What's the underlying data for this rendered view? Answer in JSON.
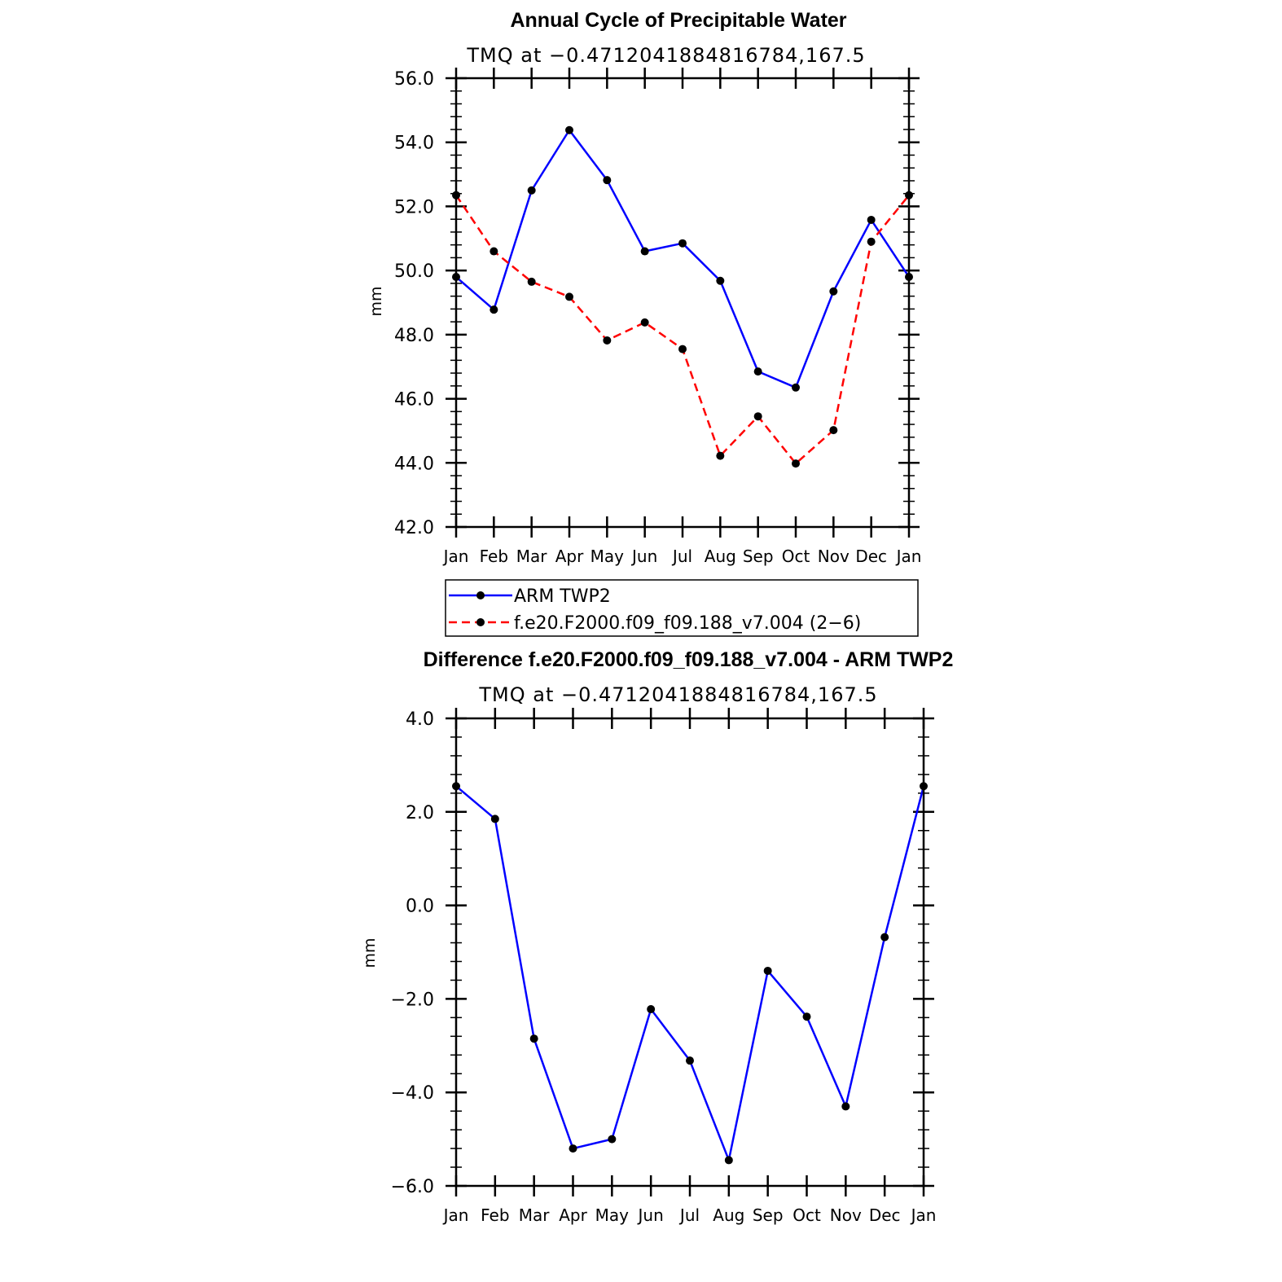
{
  "chart_data": [
    {
      "type": "line",
      "title": "Annual Cycle of Precipitable Water",
      "subtitle": "TMQ at −0.4712041884816784,167.5",
      "xlabel": "",
      "ylabel": "mm",
      "categories": [
        "Jan",
        "Feb",
        "Mar",
        "Apr",
        "May",
        "Jun",
        "Jul",
        "Aug",
        "Sep",
        "Oct",
        "Nov",
        "Dec",
        "Jan"
      ],
      "ylim": [
        42.0,
        56.0
      ],
      "yticks": [
        "42.0",
        "44.0",
        "46.0",
        "48.0",
        "50.0",
        "52.0",
        "54.0",
        "56.0"
      ],
      "grid": false,
      "series": [
        {
          "name": "ARM TWP2",
          "color": "#0000ff",
          "dash": "solid",
          "values": [
            49.8,
            48.78,
            52.5,
            54.38,
            52.82,
            50.6,
            50.85,
            49.68,
            46.85,
            46.35,
            49.35,
            51.58,
            49.8
          ]
        },
        {
          "name": "f.e20.F2000.f09_f09.188_v7.004 (2−6)",
          "color": "#ff0000",
          "dash": "dashed",
          "values": [
            52.35,
            50.6,
            49.65,
            49.18,
            47.82,
            48.38,
            47.55,
            44.22,
            45.45,
            43.98,
            45.02,
            50.9,
            52.35
          ]
        }
      ],
      "legend": "bottom"
    },
    {
      "type": "line",
      "title": "Difference f.e20.F2000.f09_f09.188_v7.004 - ARM TWP2",
      "subtitle": "TMQ at −0.4712041884816784,167.5",
      "xlabel": "",
      "ylabel": "mm",
      "categories": [
        "Jan",
        "Feb",
        "Mar",
        "Apr",
        "May",
        "Jun",
        "Jul",
        "Aug",
        "Sep",
        "Oct",
        "Nov",
        "Dec",
        "Jan"
      ],
      "ylim": [
        -6.0,
        4.0
      ],
      "yticks": [
        "−6.0",
        "−4.0",
        "−2.0",
        "0.0",
        "2.0",
        "4.0"
      ],
      "grid": false,
      "series": [
        {
          "color": "#0000ff",
          "dash": "solid",
          "values": [
            2.55,
            1.85,
            -2.85,
            -5.2,
            -5.0,
            -2.22,
            -3.32,
            -5.45,
            -1.4,
            -2.38,
            -4.3,
            -0.68,
            2.55
          ]
        }
      ]
    }
  ]
}
